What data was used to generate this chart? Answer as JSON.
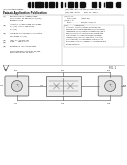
{
  "page_bg": "#ffffff",
  "barcode_color": "#111111",
  "text_color": "#222222",
  "diagram_color": "#333333",
  "title1": "(12) United States",
  "title2": "Patent Application Publication",
  "title3": "Huang et al.",
  "pub_no": "(10) Pub. No.: US 2013/0069753 A1",
  "pub_date": "(43) Pub. Date:      Mar. 21, 2013",
  "bib_left": [
    [
      "(54)",
      "RESISTOR WITH TEMPERATURE"
    ],
    [
      "",
      "COEFFICIENT OF RESISTANCE (TCR)"
    ],
    [
      "",
      "COMPENSATION"
    ],
    [
      "(75)",
      "Inventors: Ludan Huang, San Diego,"
    ],
    [
      "",
      "CA (US); Yue Xu, San Diego, CA"
    ],
    [
      "",
      "(US)"
    ],
    [
      "(73)",
      "Assignee: QUALCOMM Incorporated,"
    ],
    [
      "",
      "San Diego, CA (US)"
    ],
    [
      "(21)",
      "Appl. No.: 13/241,431"
    ],
    [
      "(22)",
      "Filed:     Sep. 9, 2011"
    ],
    [
      "",
      ""
    ],
    [
      "(60)",
      "Related U.S. Application Data"
    ],
    [
      "",
      "Provisional application No. 61/385,"
    ],
    [
      "",
      "958, filed on Sep. 23, 2010."
    ],
    [
      "",
      ""
    ],
    [
      "",
      "Related Appl. No."
    ],
    [
      "(51)",
      "Int. Cl."
    ]
  ],
  "bib_right": [
    "(51) Int. Cl.",
    "      H01C 7/22        (2006.01)",
    "(52) U.S. Cl.",
    "      USPC ............... 338/25; 338/314",
    "(57)              ABSTRACT"
  ],
  "abstract_lines": [
    "A resistor circuit includes a first resistor",
    "having a positive temperature coefficient of",
    "resistance (TCR), a second resistor having a",
    "negative TCR connected in series with the",
    "first resistor. The resistors may be metal",
    "resistors or polysilicon resistors. A control",
    "circuit adjusts the resistance of the circuit",
    "to compensate for changes in resistance due",
    "to temperature."
  ],
  "fig_label": "FIG. 1",
  "ref_numbers": [
    "100",
    "102",
    "104",
    "106",
    "108",
    "110",
    "112",
    "114",
    "116",
    "118",
    "120",
    "122"
  ]
}
